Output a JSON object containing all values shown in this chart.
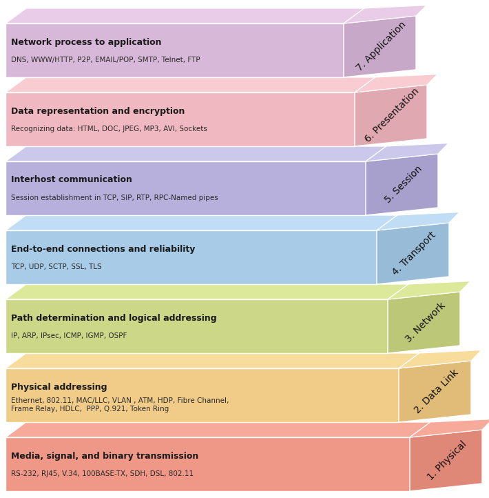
{
  "layers": [
    {
      "number": 7,
      "name": "7. Application",
      "title": "Network process to application",
      "subtitle": "DNS, WWW/HTTP, P2P, EMAIL/POP, SMTP, Telnet, FTP",
      "main_color": "#d8b8d8",
      "top_color": "#e8cce8",
      "tab_color": "#c8a8c8"
    },
    {
      "number": 6,
      "name": "6. Presentation",
      "title": "Data representation and encryption",
      "subtitle": "Recognizing data: HTML, DOC, JPEG, MP3, AVI, Sockets",
      "main_color": "#f0b8c0",
      "top_color": "#f8ccd0",
      "tab_color": "#e0a8b0"
    },
    {
      "number": 5,
      "name": "5. Session",
      "title": "Interhost communication",
      "subtitle": "Session establishment in TCP, SIP, RTP, RPC-Named pipes",
      "main_color": "#b8b0dc",
      "top_color": "#ccc8ec",
      "tab_color": "#a8a0cc"
    },
    {
      "number": 4,
      "name": "4. Transport",
      "title": "End-to-end connections and reliability",
      "subtitle": "TCP, UDP, SCTP, SSL, TLS",
      "main_color": "#a8cce8",
      "top_color": "#c0ddf5",
      "tab_color": "#98bcd8"
    },
    {
      "number": 3,
      "name": "3. Network",
      "title": "Path determination and logical addressing",
      "subtitle": "IP, ARP, IPsec, ICMP, IGMP, OSPF",
      "main_color": "#ccd888",
      "top_color": "#dce89a",
      "tab_color": "#bcc878"
    },
    {
      "number": 2,
      "name": "2. Data Link",
      "title": "Physical addressing",
      "subtitle": "Ethernet, 802.11, MAC/LLC, VLAN , ATM, HDP, Fibre Channel,\nFrame Relay, HDLC,  PPP, Q.921, Token Ring",
      "main_color": "#f0cc88",
      "top_color": "#f8dc9c",
      "tab_color": "#e0bc78"
    },
    {
      "number": 1,
      "name": "1. Physical",
      "title": "Media, signal, and binary transmission",
      "subtitle": "RS-232, RJ45, V.34, 100BASE-TX, SDH, DSL, 802.11",
      "main_color": "#f09888",
      "top_color": "#f8aa9a",
      "tab_color": "#e08878"
    }
  ],
  "bg_color": "#ffffff",
  "title_fontsize": 9.0,
  "subtitle_fontsize": 7.5,
  "label_fontsize": 10.0,
  "n_layers": 7,
  "fig_width": 7.1,
  "fig_height": 7.22,
  "dpi": 100
}
